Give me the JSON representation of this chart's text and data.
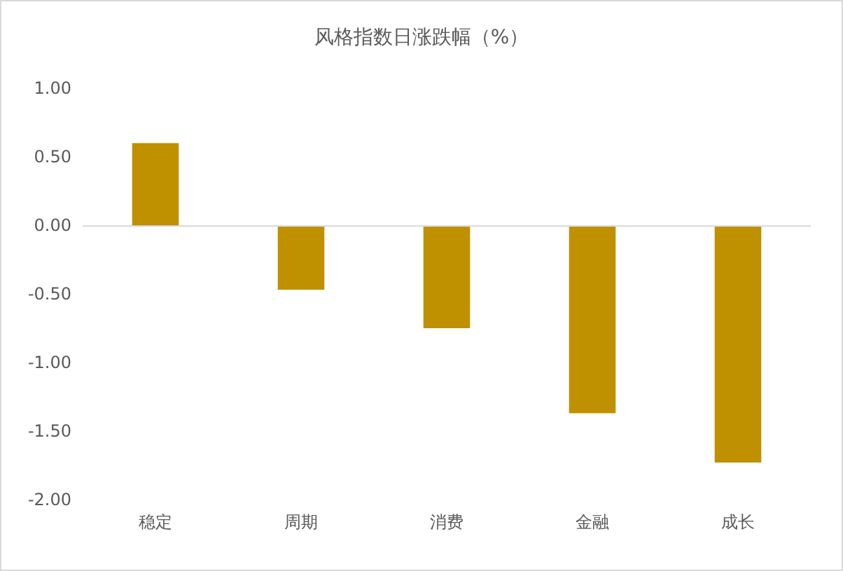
{
  "chart_data": {
    "type": "bar",
    "title": "风格指数日涨跌幅（%）",
    "categories": [
      "稳定",
      "周期",
      "消费",
      "金融",
      "成长"
    ],
    "values": [
      0.6,
      -0.47,
      -0.75,
      -1.37,
      -1.73
    ],
    "color": "#bf9000",
    "ylim": [
      -2,
      1
    ],
    "yticks": [
      {
        "value": 1,
        "label": "1.00"
      },
      {
        "value": 0.5,
        "label": "0.50"
      },
      {
        "value": 0,
        "label": "0.00"
      },
      {
        "value": -0.5,
        "label": "-0.50"
      },
      {
        "value": -1,
        "label": "-1.00"
      },
      {
        "value": -1.5,
        "label": "-1.50"
      },
      {
        "value": -2,
        "label": "-2.00"
      }
    ],
    "ref_lines": [
      {
        "axis": "y",
        "value": 0,
        "color": "#d9d9d9"
      }
    ],
    "grid": false
  }
}
